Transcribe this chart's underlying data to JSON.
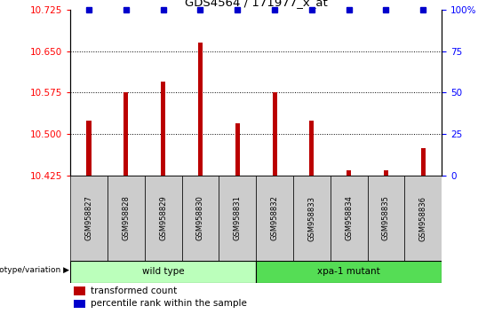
{
  "title": "GDS4564 / 171977_x_at",
  "samples": [
    "GSM958827",
    "GSM958828",
    "GSM958829",
    "GSM958830",
    "GSM958831",
    "GSM958832",
    "GSM958833",
    "GSM958834",
    "GSM958835",
    "GSM958836"
  ],
  "transformed_count": [
    10.525,
    10.575,
    10.595,
    10.665,
    10.52,
    10.575,
    10.525,
    10.435,
    10.435,
    10.475
  ],
  "percentile_rank": [
    100,
    100,
    100,
    100,
    100,
    100,
    100,
    100,
    100,
    100
  ],
  "ylim_left": [
    10.425,
    10.725
  ],
  "ylim_right": [
    0,
    100
  ],
  "yticks_left": [
    10.425,
    10.5,
    10.575,
    10.65,
    10.725
  ],
  "yticks_right": [
    0,
    25,
    50,
    75,
    100
  ],
  "bar_color": "#bb0000",
  "dot_color": "#0000cc",
  "wild_type_count": 5,
  "xpa_count": 5,
  "wild_type_label": "wild type",
  "xpa_label": "xpa-1 mutant",
  "legend_red_label": "transformed count",
  "legend_blue_label": "percentile rank within the sample",
  "genotype_label": "genotype/variation",
  "background_color": "#ffffff",
  "label_area_color": "#cccccc",
  "wild_type_box_color": "#bbffbb",
  "xpa_box_color": "#55dd55",
  "baseline": 10.425,
  "bar_width": 0.12
}
